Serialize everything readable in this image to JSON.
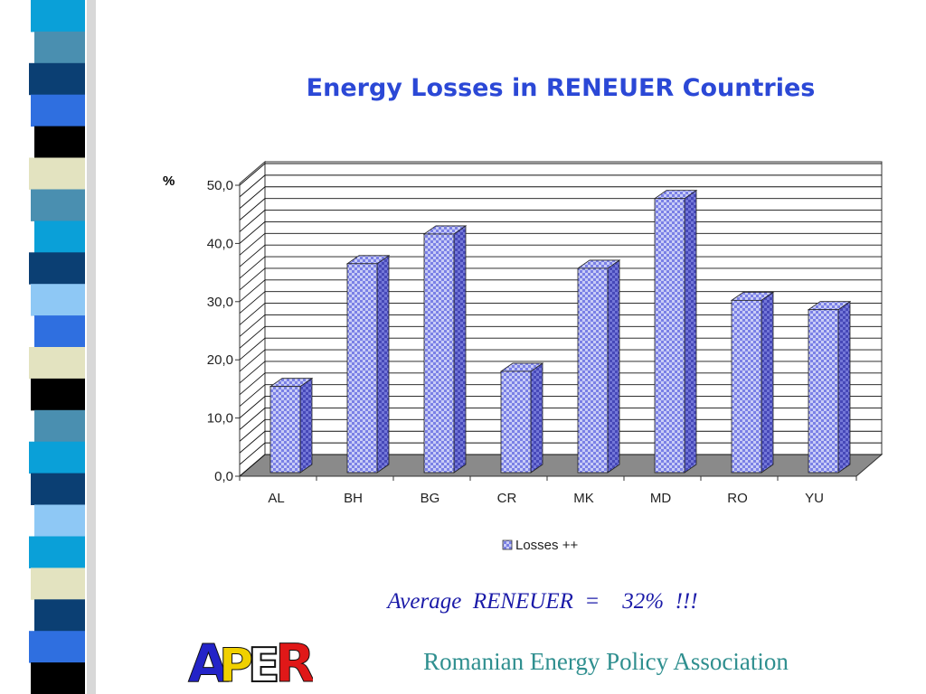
{
  "slide": {
    "title": "Energy Losses in RENEUER Countries",
    "average_text": "Average  RENEUER  =    32%  !!!",
    "association": "Romanian Energy Policy Association",
    "logo_text": "APER"
  },
  "colors": {
    "title": "#2b48d6",
    "bar_face": "#c9cdf6",
    "bar_check": "#7a80e6",
    "bar_side": "#5356c6",
    "floor": "#8a8a8a",
    "average_text": "#1a1aa8",
    "association_text": "#2f8f8f"
  },
  "chart_data": {
    "type": "bar",
    "style": "3d-column",
    "categories": [
      "AL",
      "BH",
      "BG",
      "CR",
      "MK",
      "MD",
      "RO",
      "YU"
    ],
    "series": [
      {
        "name": "Losses ++",
        "values": [
          16.2,
          37.3,
          42.4,
          18.8,
          36.5,
          48.5,
          31.0,
          29.4
        ]
      }
    ],
    "y_unit": "%",
    "ylim": [
      0,
      50
    ],
    "yticks": [
      "0,0",
      "10,0",
      "20,0",
      "30,0",
      "40,0",
      "50,0"
    ],
    "grid": true,
    "legend_position": "bottom"
  }
}
